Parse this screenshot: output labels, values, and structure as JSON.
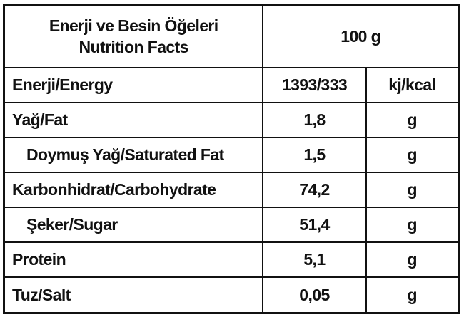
{
  "header": {
    "title": [
      "Enerji ve Besin Öğeleri",
      "Nutrition Facts"
    ],
    "amount": "100 g"
  },
  "rows": [
    [
      "Enerji/Energy",
      "1393/333",
      "kj/kcal"
    ],
    [
      "Yağ/Fat",
      "1,8",
      "g"
    ],
    [
      "Doymuş Yağ/Saturated Fat",
      "1,5",
      "g"
    ],
    [
      "Karbonhidrat/Carbohydrate",
      "74,2",
      "g"
    ],
    [
      "Şeker/Sugar",
      "51,4",
      "g"
    ],
    [
      "Protein",
      "5,1",
      "g"
    ],
    [
      "Tuz/Salt",
      "0,05",
      "g"
    ]
  ]
}
